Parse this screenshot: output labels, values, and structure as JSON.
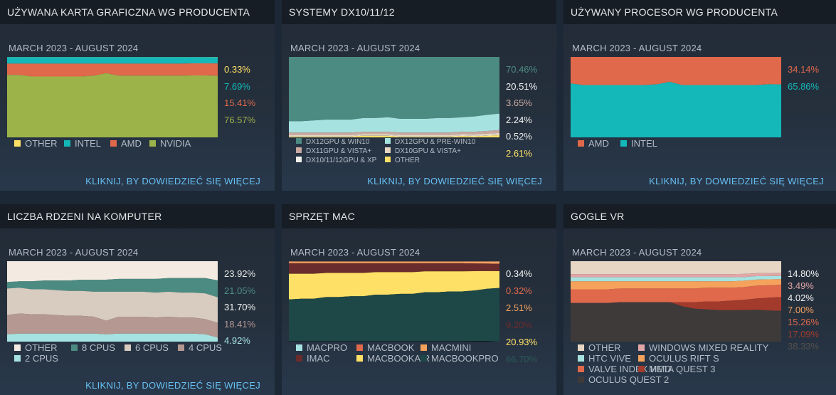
{
  "link_label": "KLIKNIJ, BY DOWIEDZIEĆ SIĘ WIĘCEJ",
  "panels": [
    {
      "title": "UŻYWANA KARTA GRAFICZNA WG PRODUCENTA",
      "period": "MARCH 2023 - AUGUST 2024",
      "legend_font": 13,
      "chart_data": {
        "type": "area",
        "stacked": true,
        "x_range": "MARCH 2023 - AUGUST 2024",
        "series": [
          {
            "name": "OTHER",
            "color": "#ffe066",
            "value": "0.33%",
            "values": [
              0.3,
              0.3,
              0.3,
              0.3,
              0.3,
              0.3,
              0.3,
              0.3,
              0.3,
              0.3,
              0.3,
              0.3,
              0.3,
              0.3,
              0.3,
              0.3,
              0.3,
              0.33
            ]
          },
          {
            "name": "INTEL",
            "color": "#14b8b8",
            "value": "7.69%",
            "values": [
              8,
              8,
              8,
              8,
              8,
              8,
              8,
              8,
              8,
              8,
              8,
              8,
              8,
              8,
              8,
              7.7,
              7.7,
              7.69
            ]
          },
          {
            "name": "AMD",
            "color": "#e0684b",
            "value": "15.41%",
            "values": [
              14,
              14,
              16,
              16,
              16,
              16,
              16,
              15,
              12,
              15,
              15,
              15,
              15,
              15,
              15,
              15,
              15,
              15.41
            ]
          },
          {
            "name": "NVIDIA",
            "color": "#9cb34a",
            "value": "76.57%",
            "values": [
              77.7,
              77.7,
              75.7,
              75.7,
              75.7,
              75.7,
              75.7,
              76.7,
              79.7,
              76.7,
              76.7,
              76.7,
              76.7,
              76.7,
              76.7,
              77,
              77,
              76.57
            ]
          }
        ]
      }
    },
    {
      "title": "SYSTEMY DX10/11/12",
      "period": "MARCH 2023 - AUGUST 2024",
      "legend_font": 10,
      "chart_data": {
        "type": "area",
        "stacked": true,
        "x_range": "MARCH 2023 - AUGUST 2024",
        "series": [
          {
            "name": "DX12GPU & WIN10",
            "color": "#4c8b82",
            "value": "70.46%",
            "values": [
              80,
              80,
              79,
              78,
              78,
              78,
              76,
              76,
              75,
              77,
              77,
              77,
              76,
              76,
              75,
              74,
              72,
              70.46
            ]
          },
          {
            "name": "DX12GPU & PRE-WIN10",
            "color": "#a6e3e0",
            "value": "20.51%",
            "values": [
              14,
              14,
              15,
              16,
              16,
              16,
              17,
              17,
              18,
              17,
              17,
              17,
              18,
              18,
              18,
              19,
              20,
              20.51
            ]
          },
          {
            "name": "DX11GPU & VISTA+",
            "color": "#c9a9a0",
            "value": "3.65%",
            "values": [
              3,
              3,
              3,
              3,
              3,
              3,
              3,
              3,
              3,
              3,
              3,
              3,
              3,
              3,
              3,
              3.2,
              3.4,
              3.65
            ]
          },
          {
            "name": "DX10GPU & VISTA+",
            "color": "#e6d6c3",
            "value": "2.24%",
            "values": [
              1.5,
              1.5,
              1.5,
              1.5,
              1.5,
              1.5,
              1.5,
              1.5,
              1.5,
              1.5,
              1.5,
              1.5,
              1.5,
              1.5,
              1.8,
              2,
              2,
              2.24
            ]
          },
          {
            "name": "DX10/11/12GPU & XP",
            "color": "#f3f3ee",
            "value": "0.52%",
            "values": [
              0.5,
              0.5,
              0.5,
              0.5,
              0.5,
              0.5,
              0.5,
              0.5,
              0.5,
              0.5,
              0.5,
              0.5,
              0.5,
              0.5,
              0.5,
              0.5,
              0.5,
              0.52
            ]
          },
          {
            "name": "OTHER",
            "color": "#ffe066",
            "value": "2.61%",
            "values": [
              1,
              1,
              1,
              1,
              1,
              1,
              2,
              2,
              2,
              1,
              1,
              1,
              1,
              1,
              1.7,
              1.3,
              2.1,
              2.61
            ]
          }
        ]
      }
    },
    {
      "title": "UŻYWANY PROCESOR WG PRODUCENTA",
      "period": "MARCH 2023 - AUGUST 2024",
      "legend_font": 13,
      "chart_data": {
        "type": "area",
        "stacked": true,
        "x_range": "MARCH 2023 - AUGUST 2024",
        "series": [
          {
            "name": "AMD",
            "color": "#e0684b",
            "value": "34.14%",
            "values": [
              33,
              35,
              35,
              35,
              35,
              35,
              35,
              34,
              31,
              35,
              35,
              35,
              35,
              35,
              35,
              35,
              34,
              34.14
            ]
          },
          {
            "name": "INTEL",
            "color": "#14b8b8",
            "value": "65.86%",
            "values": [
              67,
              65,
              65,
              65,
              65,
              65,
              65,
              66,
              69,
              65,
              65,
              65,
              65,
              65,
              65,
              65,
              66,
              65.86
            ]
          }
        ]
      }
    },
    {
      "title": "LICZBA RDZENI NA KOMPUTER",
      "period": "MARCH 2023 - AUGUST 2024",
      "legend_font": 13,
      "chart_data": {
        "type": "area",
        "stacked": true,
        "x_range": "MARCH 2023 - AUGUST 2024",
        "series": [
          {
            "name": "OTHER",
            "color": "#f3ebe2",
            "value": "23.92%",
            "values": [
              26,
              25,
              25,
              24,
              24,
              24,
              23,
              23,
              23,
              22,
              22,
              22,
              22,
              21,
              21,
              21,
              21,
              23.92
            ]
          },
          {
            "name": "8 CPUS",
            "color": "#4c8b82",
            "value": "21.05%",
            "values": [
              8,
              8,
              10,
              11,
              12,
              13,
              14,
              15,
              15,
              16,
              16,
              16,
              17,
              17,
              18,
              18,
              19,
              21.05
            ]
          },
          {
            "name": "6 CPUS",
            "color": "#d8cbbf",
            "value": "31.70%",
            "values": [
              33,
              32,
              31,
              31,
              31,
              31,
              31,
              31,
              36,
              31,
              31,
              31,
              31,
              31,
              31,
              31,
              32,
              31.7
            ]
          },
          {
            "name": "4 CPUS",
            "color": "#b59892",
            "value": "18.41%",
            "values": [
              24,
              25,
              24,
              24,
              23,
              22,
              22,
              21,
              17,
              21,
              21,
              21,
              20,
              21,
              20,
              20,
              19,
              18.41
            ]
          },
          {
            "name": "2 CPUS",
            "color": "#a6e3e0",
            "value": "4.92%",
            "values": [
              9,
              10,
              10,
              10,
              10,
              10,
              10,
              10,
              9,
              10,
              10,
              10,
              10,
              10,
              10,
              10,
              9,
              4.92
            ]
          }
        ]
      }
    },
    {
      "title": "SPRZĘT MAC",
      "period": "MARCH 2023 - AUGUST 2024",
      "legend_font": 13,
      "chart_data": {
        "type": "area",
        "stacked": true,
        "x_range": "MARCH 2023 - AUGUST 2024",
        "series": [
          {
            "name": "MACPRO",
            "color": "#a6e3e0",
            "value": "0.34%",
            "values": [
              0.3,
              0.3,
              0.3,
              0.3,
              0.3,
              0.3,
              0.3,
              0.3,
              0.3,
              0.3,
              0.3,
              0.3,
              0.3,
              0.3,
              0.3,
              0.3,
              0.3,
              0.34
            ]
          },
          {
            "name": "MACBOOK",
            "color": "#e0684b",
            "value": "0.32%",
            "values": [
              0.3,
              0.3,
              0.3,
              0.3,
              0.3,
              0.3,
              0.3,
              0.3,
              0.3,
              0.3,
              0.3,
              0.3,
              0.3,
              0.3,
              0.3,
              0.3,
              0.3,
              0.32
            ]
          },
          {
            "name": "MACMINI",
            "color": "#f5a25d",
            "value": "2.51%",
            "values": [
              2,
              2,
              2,
              2,
              2,
              2,
              2,
              2,
              2,
              2,
              2,
              2,
              2,
              2,
              2,
              2.3,
              2.4,
              2.51
            ]
          },
          {
            "name": "IMAC",
            "color": "#6a2c2c",
            "value": "9.20%",
            "values": [
              13,
              13,
              13,
              12,
              12,
              12,
              12,
              11,
              11,
              11,
              11,
              10,
              10,
              10,
              10,
              9.5,
              9.3,
              9.2
            ]
          },
          {
            "name": "MACBOOKAIR",
            "color": "#ffe066",
            "value": "20.93%",
            "values": [
              32,
              31,
              31,
              30,
              30,
              29,
              29,
              28,
              28,
              27,
              27,
              26,
              26,
              25,
              25,
              24,
              22,
              20.93
            ]
          },
          {
            "name": "MACBOOKPRO",
            "color": "#1e4848",
            "value": "66.70%",
            "values": [
              52,
              53,
              53,
              55,
              55,
              56,
              56,
              58,
              58,
              59,
              59,
              61,
              61,
              62,
              62,
              63,
              65,
              66.7
            ]
          }
        ]
      }
    },
    {
      "title": "GOGLE VR",
      "period": "MARCH 2023 - AUGUST 2024",
      "legend_font": 13,
      "chart_data": {
        "type": "area",
        "stacked": true,
        "x_range": "MARCH 2023 - AUGUST 2024",
        "series": [
          {
            "name": "OTHER",
            "color": "#e6d6c3",
            "value": "14.80%",
            "values": [
              16,
              16,
              16,
              16,
              16,
              16,
              16,
              16,
              16,
              16,
              16,
              16,
              16,
              16,
              16,
              15,
              15,
              14.8
            ]
          },
          {
            "name": "WINDOWS MIXED REALITY",
            "color": "#e2a6a6",
            "value": "3.49%",
            "values": [
              4,
              4,
              4,
              4,
              4,
              4,
              4,
              4,
              4,
              4,
              4,
              4,
              4,
              4,
              4,
              3.6,
              3.5,
              3.49
            ]
          },
          {
            "name": "HTC VIVE",
            "color": "#a6e3e0",
            "value": "4.02%",
            "values": [
              5,
              5,
              5,
              5,
              5,
              5,
              5,
              5,
              5,
              5,
              5,
              5,
              5,
              5,
              4.5,
              4.3,
              4.1,
              4.02
            ]
          },
          {
            "name": "OCULUS RIFT S",
            "color": "#f5a25d",
            "value": "7.00%",
            "values": [
              10,
              10,
              10,
              10,
              9,
              9,
              9,
              9,
              9,
              9,
              9,
              8,
              8,
              8,
              8,
              7.5,
              7.2,
              7.0
            ]
          },
          {
            "name": "VALVE INDEX HMD",
            "color": "#e0684b",
            "value": "15.26%",
            "values": [
              17,
              17,
              17,
              17,
              17,
              17,
              17,
              17,
              17,
              17,
              17,
              17,
              17,
              16,
              16,
              16,
              15.5,
              15.26
            ]
          },
          {
            "name": "META QUEST 3",
            "color": "#a33b2c",
            "value": "17.09%",
            "values": [
              0,
              0,
              0,
              0,
              0,
              0,
              0,
              0,
              0,
              5,
              8,
              10,
              11,
              12,
              13,
              14,
              16,
              17.09
            ]
          },
          {
            "name": "OCULUS QUEST 2",
            "color": "#3e3a3a",
            "value": "38.33%",
            "values": [
              48,
              48,
              48,
              48,
              49,
              49,
              49,
              49,
              49,
              44,
              41,
              40,
              39,
              39,
              39.5,
              39.6,
              38.7,
              38.33
            ]
          }
        ]
      }
    }
  ]
}
